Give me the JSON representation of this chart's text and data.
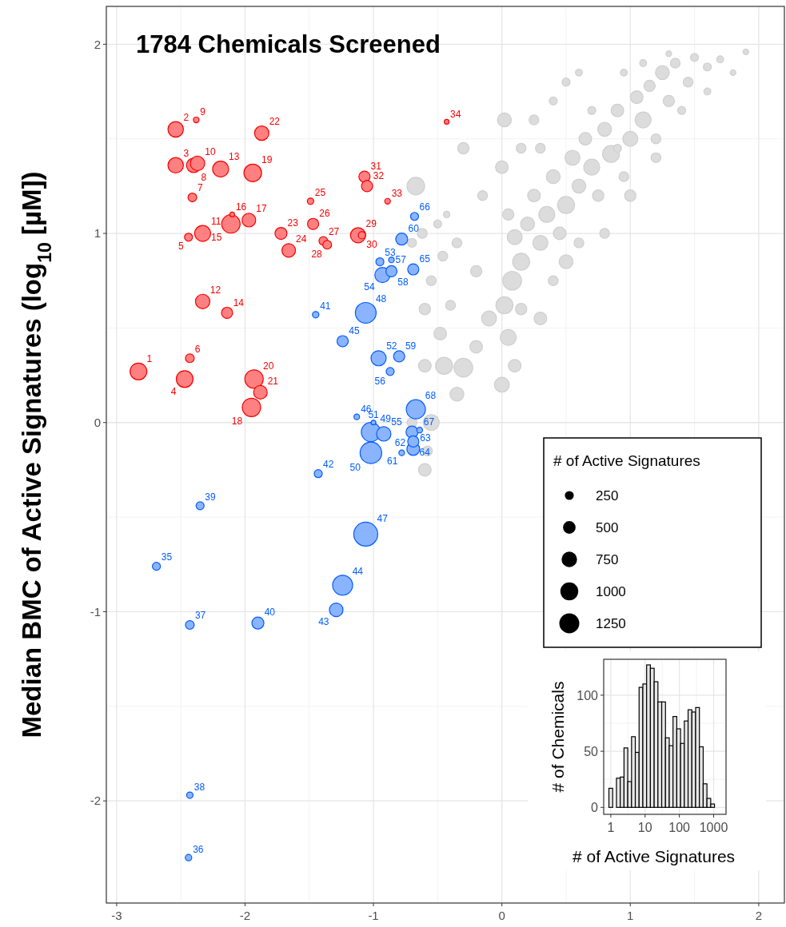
{
  "chart_data": [
    {
      "type": "bubble",
      "title": "1784 Chemicals Screened",
      "ylabel": "Median BMC of Active Signatures (log$_{10}$ [µM])",
      "legend_title": "# of Active Signatures",
      "size_legend": [
        250,
        500,
        750,
        1000,
        1250
      ],
      "grid": true,
      "annotations": [
        {
          "text": "1",
          "x": -2.83,
          "y": 0.27
        },
        {
          "text": "2",
          "x": -2.54,
          "y": 1.55
        },
        {
          "text": "3",
          "x": -2.54,
          "y": 1.36
        },
        {
          "text": "4",
          "x": -2.47,
          "y": 0.23
        },
        {
          "text": "5",
          "x": -2.44,
          "y": 0.98
        },
        {
          "text": "6",
          "x": -2.43,
          "y": 0.34
        },
        {
          "text": "7",
          "x": -2.41,
          "y": 1.19
        },
        {
          "text": "8",
          "x": -2.4,
          "y": 1.36
        },
        {
          "text": "9",
          "x": -2.38,
          "y": 1.6
        },
        {
          "text": "10",
          "x": -2.37,
          "y": 1.37
        },
        {
          "text": "11",
          "x": -2.33,
          "y": 1.0
        },
        {
          "text": "12",
          "x": -2.33,
          "y": 0.64
        },
        {
          "text": "13",
          "x": -2.19,
          "y": 1.34
        },
        {
          "text": "14",
          "x": -2.14,
          "y": 0.58
        },
        {
          "text": "15",
          "x": -2.11,
          "y": 1.05
        },
        {
          "text": "16",
          "x": -2.1,
          "y": 1.1
        },
        {
          "text": "17",
          "x": -1.97,
          "y": 1.07
        },
        {
          "text": "18",
          "x": -1.95,
          "y": 0.08
        },
        {
          "text": "19",
          "x": -1.94,
          "y": 1.32
        },
        {
          "text": "20",
          "x": -1.93,
          "y": 0.23
        },
        {
          "text": "21",
          "x": -1.88,
          "y": 0.16
        },
        {
          "text": "22",
          "x": -1.87,
          "y": 1.53
        },
        {
          "text": "23",
          "x": -1.72,
          "y": 1.0
        },
        {
          "text": "24",
          "x": -1.66,
          "y": 0.91
        },
        {
          "text": "25",
          "x": -1.49,
          "y": 1.17
        },
        {
          "text": "26",
          "x": -1.47,
          "y": 1.05
        },
        {
          "text": "27",
          "x": -1.39,
          "y": 0.96
        },
        {
          "text": "28",
          "x": -1.36,
          "y": 0.94
        },
        {
          "text": "29",
          "x": -1.12,
          "y": 0.99
        },
        {
          "text": "30",
          "x": -1.09,
          "y": 0.99
        },
        {
          "text": "31",
          "x": -1.07,
          "y": 1.3
        },
        {
          "text": "32",
          "x": -1.05,
          "y": 1.25
        },
        {
          "text": "33",
          "x": -0.89,
          "y": 1.17
        },
        {
          "text": "34",
          "x": -0.43,
          "y": 1.59
        },
        {
          "text": "35",
          "x": -2.69,
          "y": -0.76
        },
        {
          "text": "36",
          "x": -2.44,
          "y": -2.3
        },
        {
          "text": "37",
          "x": -2.43,
          "y": -1.07
        },
        {
          "text": "38",
          "x": -2.43,
          "y": -1.97
        },
        {
          "text": "39",
          "x": -2.35,
          "y": -0.44
        },
        {
          "text": "40",
          "x": -1.9,
          "y": -1.06
        },
        {
          "text": "41",
          "x": -1.45,
          "y": 0.57
        },
        {
          "text": "42",
          "x": -1.43,
          "y": -0.27
        },
        {
          "text": "43",
          "x": -1.29,
          "y": -0.99
        },
        {
          "text": "44",
          "x": -1.24,
          "y": -0.86
        },
        {
          "text": "45",
          "x": -1.24,
          "y": 0.43
        },
        {
          "text": "46",
          "x": -1.13,
          "y": 0.03
        },
        {
          "text": "47",
          "x": -1.06,
          "y": -0.59
        },
        {
          "text": "48",
          "x": -1.06,
          "y": 0.58
        },
        {
          "text": "49",
          "x": -1.02,
          "y": -0.05
        },
        {
          "text": "50",
          "x": -1.02,
          "y": -0.16
        },
        {
          "text": "51",
          "x": -1.0,
          "y": 0.0
        },
        {
          "text": "52",
          "x": -0.96,
          "y": 0.34
        },
        {
          "text": "53",
          "x": -0.95,
          "y": 0.85
        },
        {
          "text": "54",
          "x": -0.93,
          "y": 0.78
        },
        {
          "text": "55",
          "x": -0.92,
          "y": -0.06
        },
        {
          "text": "56",
          "x": -0.87,
          "y": 0.27
        },
        {
          "text": "57",
          "x": -0.86,
          "y": 0.86
        },
        {
          "text": "58",
          "x": -0.86,
          "y": 0.8
        },
        {
          "text": "59",
          "x": -0.8,
          "y": 0.35
        },
        {
          "text": "60",
          "x": -0.78,
          "y": 0.97
        },
        {
          "text": "61",
          "x": -0.78,
          "y": -0.16
        },
        {
          "text": "62",
          "x": -0.7,
          "y": -0.05
        },
        {
          "text": "63",
          "x": -0.69,
          "y": -0.14
        },
        {
          "text": "64",
          "x": -0.69,
          "y": -0.1
        },
        {
          "text": "65",
          "x": -0.69,
          "y": 0.81
        },
        {
          "text": "66",
          "x": -0.68,
          "y": 1.09
        },
        {
          "text": "67",
          "x": -0.64,
          "y": -0.04
        },
        {
          "text": "68",
          "x": -0.67,
          "y": 0.07
        }
      ],
      "xlim": [
        -3.08,
        2.2
      ],
      "ylim": [
        -2.54,
        2.2
      ],
      "xticks": [
        -3,
        -2,
        -1,
        0,
        1,
        2
      ],
      "yticks": [
        -2,
        -1,
        0,
        1,
        2
      ],
      "series": [
        {
          "color": "#dcdcdc",
          "x": [
            -0.6,
            -0.55,
            -0.45,
            -0.3,
            -0.48,
            -0.35,
            -0.2,
            -0.1,
            0.02,
            0.05,
            0.08,
            0.15,
            0.1,
            0.2,
            0.25,
            0.3,
            0.35,
            0.4,
            0.45,
            0.5,
            0.55,
            0.6,
            0.65,
            0.7,
            0.75,
            0.8,
            0.85,
            0.9,
            0.95,
            1.0,
            1.05,
            1.1,
            1.15,
            1.2,
            1.25,
            1.3,
            1.35,
            1.45,
            1.5,
            1.6,
            1.7,
            1.9,
            1.8,
            0.02,
            -0.3,
            -0.67,
            -0.46,
            -0.43,
            0.0,
            0.05,
            -0.15,
            0.25,
            0.4,
            0.5,
            0.6,
            0.15,
            0.3,
            0.5,
            0.0,
            0.1,
            0.15,
            -0.6,
            -0.55,
            -0.7,
            -0.62,
            -0.5,
            -0.35,
            -0.2,
            -0.4,
            -0.6,
            -0.7,
            -0.58,
            0.3,
            0.7,
            0.9,
            1.0,
            1.2,
            1.4,
            1.6,
            0.8,
            0.6,
            0.4,
            0.95,
            1.1,
            1.3
          ],
          "values": [
            -0.25,
            0.0,
            0.3,
            0.29,
            0.47,
            0.15,
            0.4,
            0.55,
            0.62,
            0.45,
            0.75,
            0.85,
            0.98,
            1.05,
            1.2,
            0.95,
            1.1,
            1.3,
            1.0,
            1.15,
            1.4,
            1.25,
            1.5,
            1.35,
            1.2,
            1.55,
            1.42,
            1.65,
            1.3,
            1.5,
            1.72,
            1.6,
            1.78,
            1.5,
            1.85,
            1.7,
            1.9,
            1.8,
            1.93,
            1.88,
            1.92,
            1.96,
            1.85,
            1.6,
            1.45,
            1.25,
            0.88,
            1.1,
            1.35,
            1.1,
            1.2,
            1.6,
            1.7,
            1.8,
            1.85,
            1.45,
            0.55,
            0.85,
            0.2,
            0.3,
            0.6,
            0.6,
            0.75,
            0.95,
            1.0,
            1.05,
            0.95,
            0.8,
            0.62,
            0.3,
            0.0,
            -0.15,
            1.45,
            1.65,
            1.45,
            1.2,
            1.4,
            1.65,
            1.75,
            1.0,
            0.95,
            0.75,
            1.85,
            1.9,
            1.95
          ],
          "sizes": [
            500,
            800,
            900,
            1100,
            500,
            600,
            500,
            700,
            900,
            800,
            1100,
            900,
            700,
            600,
            500,
            700,
            800,
            600,
            500,
            900,
            700,
            600,
            500,
            800,
            400,
            600,
            900,
            500,
            300,
            700,
            500,
            800,
            400,
            300,
            600,
            400,
            300,
            300,
            200,
            200,
            150,
            100,
            100,
            600,
            400,
            970,
            300,
            130,
            500,
            400,
            300,
            300,
            200,
            200,
            150,
            300,
            500,
            600,
            700,
            500,
            400,
            400,
            300,
            250,
            300,
            200,
            300,
            400,
            300,
            500,
            300,
            300,
            300,
            200,
            200,
            400,
            300,
            200,
            150,
            300,
            300,
            300,
            150,
            150,
            100
          ]
        },
        {
          "color": "#ff8080",
          "x": [
            -2.83,
            -2.54,
            -2.54,
            -2.47,
            -2.44,
            -2.43,
            -2.41,
            -2.4,
            -2.38,
            -2.37,
            -2.33,
            -2.33,
            -2.19,
            -2.14,
            -2.11,
            -2.1,
            -1.97,
            -1.95,
            -1.94,
            -1.93,
            -1.88,
            -1.87,
            -1.72,
            -1.66,
            -1.49,
            -1.47,
            -1.39,
            -1.36,
            -1.12,
            -1.09,
            -1.07,
            -1.05,
            -0.89,
            -0.43
          ],
          "values": [
            0.27,
            1.55,
            1.36,
            0.23,
            0.98,
            0.34,
            1.19,
            1.36,
            1.6,
            1.37,
            1.0,
            0.64,
            1.34,
            0.58,
            1.05,
            1.1,
            1.07,
            0.08,
            1.32,
            0.23,
            0.16,
            1.53,
            1.0,
            0.91,
            1.17,
            1.05,
            0.96,
            0.94,
            0.99,
            0.99,
            1.3,
            1.25,
            1.17,
            1.59
          ],
          "sizes": [
            880,
            750,
            750,
            880,
            200,
            240,
            240,
            650,
            100,
            650,
            800,
            650,
            800,
            390,
            1060,
            70,
            580,
            1060,
            970,
            1060,
            580,
            650,
            450,
            580,
            130,
            390,
            240,
            240,
            720,
            160,
            390,
            390,
            100,
            70
          ]
        },
        {
          "color": "#8ab4ff",
          "x": [
            -2.69,
            -2.44,
            -2.43,
            -2.43,
            -2.35,
            -1.9,
            -1.45,
            -1.43,
            -1.29,
            -1.24,
            -1.24,
            -1.13,
            -1.06,
            -1.06,
            -1.02,
            -1.02,
            -1.0,
            -0.96,
            -0.95,
            -0.93,
            -0.92,
            -0.87,
            -0.86,
            -0.86,
            -0.8,
            -0.78,
            -0.78,
            -0.7,
            -0.69,
            -0.69,
            -0.69,
            -0.68,
            -0.64,
            -0.67
          ],
          "values": [
            -0.76,
            -2.3,
            -1.07,
            -1.97,
            -0.44,
            -1.06,
            0.57,
            -0.27,
            -0.99,
            -0.86,
            0.43,
            0.03,
            -0.59,
            0.58,
            -0.05,
            -0.16,
            0.0,
            0.34,
            0.85,
            0.78,
            -0.06,
            0.27,
            0.86,
            0.8,
            0.35,
            0.97,
            -0.16,
            -0.05,
            -0.14,
            -0.1,
            0.81,
            1.09,
            -0.04,
            0.07
          ],
          "sizes": [
            200,
            130,
            240,
            130,
            200,
            450,
            130,
            200,
            580,
            1250,
            390,
            100,
            1800,
            1350,
            1150,
            1460,
            70,
            720,
            200,
            720,
            650,
            200,
            100,
            390,
            390,
            450,
            100,
            450,
            510,
            390,
            390,
            200,
            100,
            1150
          ]
        }
      ]
    },
    {
      "type": "histogram",
      "xlabel": "# of Active Signatures",
      "ylabel": "# of Chemicals",
      "log": "x",
      "grid": true,
      "color": "#e6e6e6",
      "xlim": [
        0.62,
        2300
      ],
      "ylim": [
        -6.2,
        132
      ],
      "xticks": [
        1,
        10,
        100,
        1000
      ],
      "yticks": [
        0,
        50,
        100
      ],
      "bins": [
        0.881,
        1.135,
        1.462,
        1.884,
        2.427,
        3.126,
        4.027,
        5.188,
        6.683,
        8.61,
        11.09,
        14.29,
        18.41,
        23.71,
        30.55,
        39.36,
        50.7,
        65.31,
        84.14,
        108.4,
        139.6,
        179.9,
        231.7,
        298.5,
        384.6,
        495.5,
        638.3,
        822.2,
        1059,
        1365
      ],
      "values": [
        17,
        0,
        26,
        27,
        53,
        23,
        63,
        49,
        107,
        110,
        127,
        124,
        112,
        94,
        94,
        62,
        55,
        81,
        70,
        57,
        77,
        87,
        85,
        89,
        54,
        21,
        8,
        3,
        0
      ]
    }
  ]
}
